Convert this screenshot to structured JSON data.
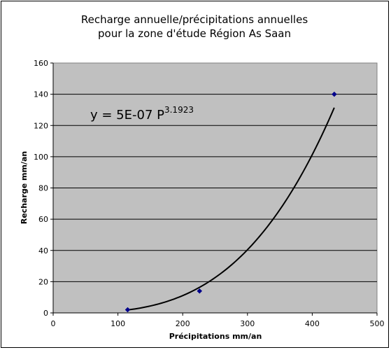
{
  "chart_data": {
    "type": "scatter",
    "title_line1": "Recharge annuelle/précipitations annuelles",
    "title_line2": "pour la zone d'étude Région As Saan",
    "xlabel": "Précipitations mm/an",
    "ylabel": "Recharge mm/an",
    "xlim": [
      0,
      500
    ],
    "ylim": [
      0,
      160
    ],
    "xticks": [
      0,
      100,
      200,
      300,
      400,
      500
    ],
    "yticks": [
      0,
      20,
      40,
      60,
      80,
      100,
      120,
      140,
      160
    ],
    "grid": "horizontal",
    "series": [
      {
        "x": [
          115,
          226,
          434
        ],
        "y": [
          2,
          14,
          140
        ],
        "color": "#00008b"
      }
    ],
    "trendline": {
      "type": "power",
      "coefficient": 5e-07,
      "exponent": 3.1923,
      "x_range": [
        115,
        434
      ],
      "color": "#000000"
    },
    "equation": {
      "prefix": "y = 5E-07 P",
      "exponent": "3.1923"
    },
    "plot_background": "#c0c0c0"
  }
}
